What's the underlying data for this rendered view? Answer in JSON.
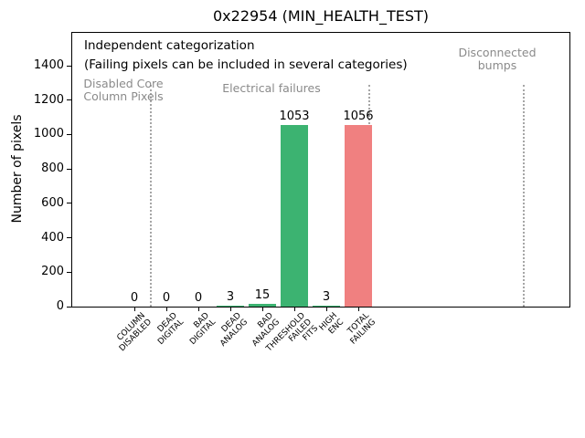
{
  "title": "0x22954 (MIN_HEALTH_TEST)",
  "chart_data": {
    "type": "bar",
    "title": "0x22954 (MIN_HEALTH_TEST)",
    "ylabel": "Number of pixels",
    "xlabel": "",
    "categories": [
      "COLUMN\nDISABLED",
      "DEAD\nDIGITAL",
      "BAD\nDIGITAL",
      "DEAD\nANALOG",
      "BAD\nANALOG",
      "THRESHOLD\nFAILED\nFITS",
      "HIGH\nENC",
      "TOTAL\nFAILING"
    ],
    "values": [
      0,
      0,
      0,
      3,
      15,
      1053,
      3,
      1056
    ],
    "value_labels": [
      "0",
      "0",
      "0",
      "3",
      "15",
      "1053",
      "3",
      "1056"
    ],
    "bar_colors": [
      "#3cb371",
      "#3cb371",
      "#3cb371",
      "#3cb371",
      "#3cb371",
      "#3cb371",
      "#3cb371",
      "#f08080"
    ],
    "yticks": [
      0,
      200,
      400,
      600,
      800,
      1000,
      1200,
      1400
    ],
    "ylim": [
      0,
      1600
    ],
    "xlim": [
      -1.97,
      13.63
    ],
    "grid": false,
    "separators": {
      "linestyle": "dotted",
      "color": "#a6a6a6",
      "x_units": [
        0.51,
        7.34,
        12.17
      ]
    },
    "annotations": [
      {
        "id": "note",
        "text": "Independent categorization\n(Failing pixels can be included in several categories)",
        "color": "#000000"
      },
      {
        "id": "group-disabled-core",
        "text": "Disabled Core\nColumn Pixels",
        "color": "#8a8a8a"
      },
      {
        "id": "group-electrical",
        "text": "Electrical failures",
        "color": "#8a8a8a"
      },
      {
        "id": "group-disconnected",
        "text": "Disconnected\nbumps",
        "color": "#8a8a8a"
      }
    ]
  }
}
